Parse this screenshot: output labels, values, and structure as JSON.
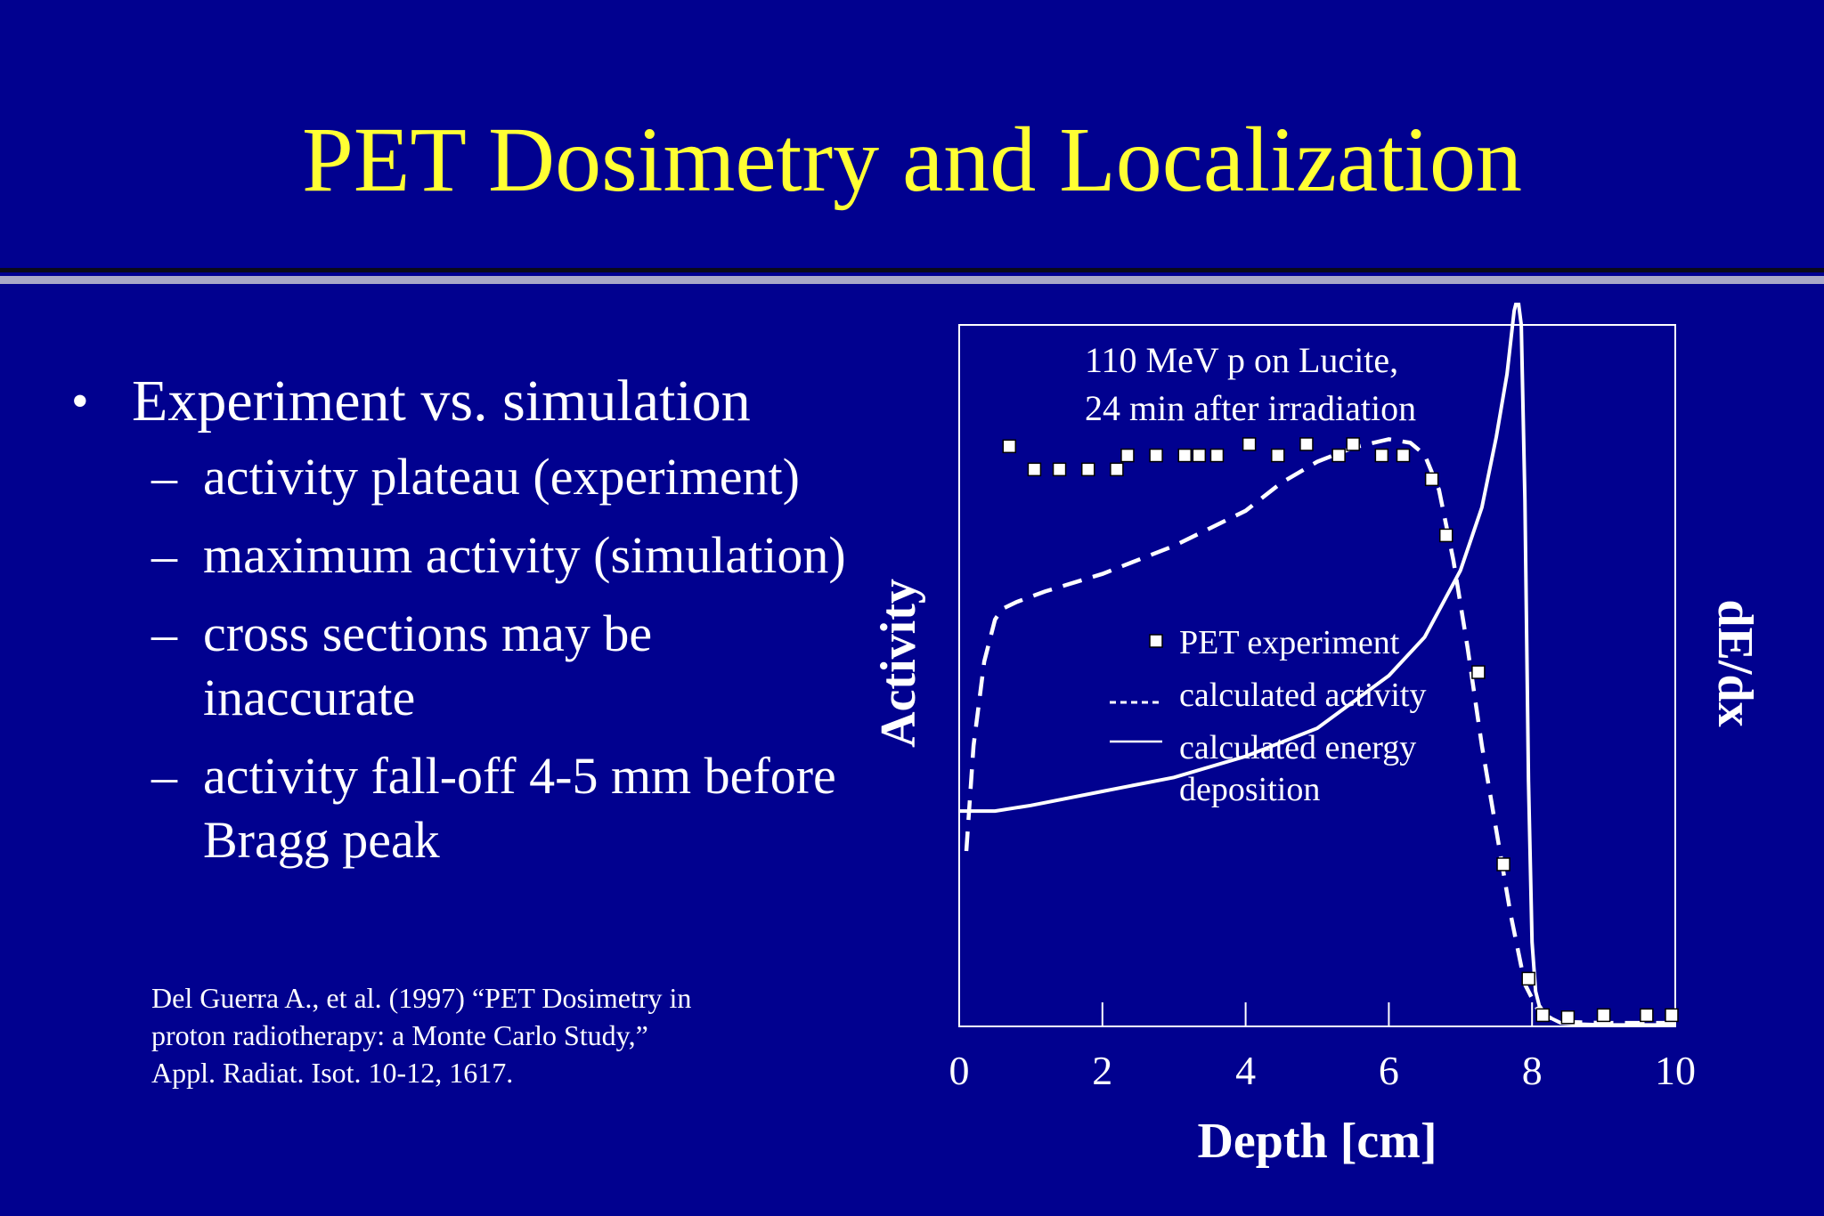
{
  "slide": {
    "title": "PET Dosimetry and Localization",
    "bullet": "Experiment vs. simulation",
    "subbullets": [
      "activity plateau (experiment)",
      "maximum activity (simulation)",
      "cross sections may be inaccurate",
      "activity fall-off 4-5 mm before Bragg peak"
    ],
    "citation": [
      "Del Guerra A., et al. (1997) “PET  Dosimetry in",
      "proton radiotherapy: a Monte Carlo Study,”",
      "Appl. Radiat. Isot. 10-12, 1617."
    ]
  },
  "colors": {
    "background": "#01018f",
    "title": "#ffff33",
    "text": "#ffffff"
  },
  "chart_data": {
    "type": "line",
    "annotation": [
      "110 MeV p on Lucite,",
      "24 min after irradiation"
    ],
    "xlabel": "Depth [cm]",
    "ylabel_left": "Activity",
    "ylabel_right": "dE/dx",
    "xlim": [
      0,
      10
    ],
    "ylim": [
      0,
      100
    ],
    "xticks": [
      0,
      2,
      4,
      6,
      8,
      10
    ],
    "grid": false,
    "legend_position": "center",
    "legend": [
      {
        "marker": "square",
        "label": "PET experiment"
      },
      {
        "marker": "-----",
        "label": "calculated activity"
      },
      {
        "marker": "line",
        "label": "calculated energy deposition"
      }
    ],
    "series": [
      {
        "name": "PET experiment",
        "style": "square-markers",
        "x": [
          0.7,
          1.05,
          1.4,
          1.8,
          2.2,
          2.35,
          2.75,
          3.15,
          3.35,
          3.6,
          4.05,
          4.45,
          4.85,
          5.3,
          5.5,
          5.9,
          6.2,
          6.6,
          6.8,
          7.25,
          7.6,
          7.95,
          8.15,
          8.5,
          9.0,
          9.6,
          9.95
        ],
        "y": [
          82.7,
          79.4,
          79.4,
          79.4,
          79.4,
          81.4,
          81.4,
          81.4,
          81.4,
          81.4,
          83.0,
          81.4,
          83.0,
          81.4,
          83.0,
          81.4,
          81.4,
          78.0,
          70.0,
          50.5,
          23.1,
          6.8,
          1.6,
          1.3,
          1.6,
          1.6,
          1.6
        ]
      },
      {
        "name": "calculated activity",
        "style": "dashed",
        "x": [
          0.1,
          0.2,
          0.35,
          0.5,
          0.6,
          0.8,
          1.2,
          2.0,
          3.0,
          4.0,
          4.5,
          5.0,
          5.5,
          6.0,
          6.3,
          6.5,
          6.7,
          6.9,
          7.1,
          7.3,
          7.5,
          7.7,
          7.9,
          8.1,
          8.3,
          8.6,
          9.0,
          9.5,
          10.0
        ],
        "y": [
          25,
          40,
          52,
          58,
          59.5,
          60.5,
          62,
          64.5,
          68.5,
          73.5,
          77.5,
          80.5,
          82.5,
          83.7,
          83.2,
          81.5,
          76.5,
          66.5,
          54,
          40,
          28,
          16,
          6,
          2,
          1,
          0.6,
          0.5,
          0.5,
          0.5
        ]
      },
      {
        "name": "calculated energy deposition",
        "style": "solid",
        "x": [
          0,
          0.5,
          1,
          2,
          3,
          4,
          5,
          6,
          6.5,
          7.0,
          7.3,
          7.5,
          7.65,
          7.75,
          7.8,
          7.85,
          7.9,
          7.95,
          8.0,
          8.05,
          8.1,
          8.2,
          8.4,
          8.7,
          9.0,
          9.5,
          10.0
        ],
        "y": [
          30.7,
          30.7,
          31.5,
          33.5,
          35.5,
          38.5,
          42.5,
          50,
          55.5,
          65,
          74,
          84,
          93,
          102,
          104,
          100,
          75,
          35,
          12,
          5,
          3,
          1.5,
          0.5,
          0.3,
          0.2,
          0.2,
          0.2
        ]
      }
    ]
  }
}
